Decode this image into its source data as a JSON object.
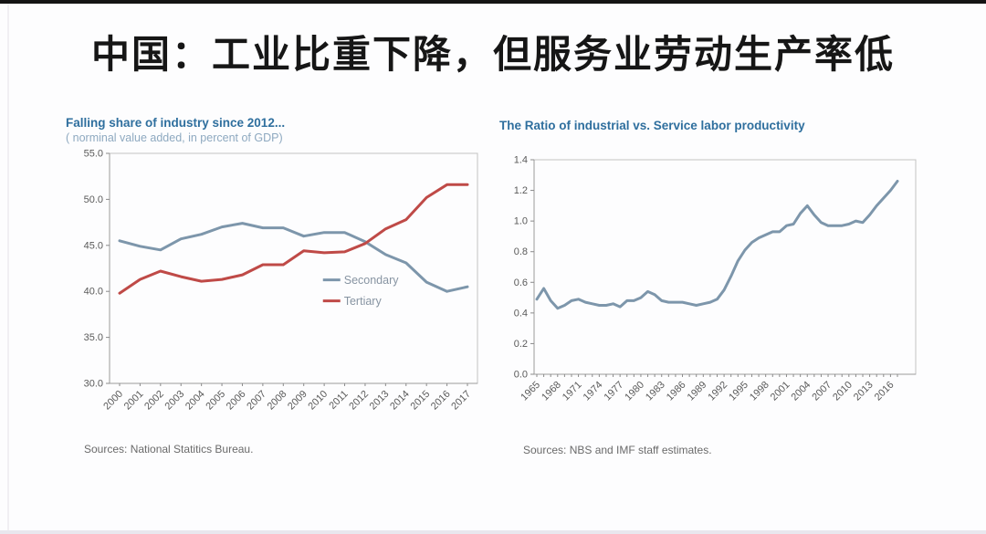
{
  "page": {
    "title": "中国：工业比重下降，但服务业劳动生产率低"
  },
  "colors": {
    "chart_title_accent": "#2f6f9e",
    "secondary_line": "#7d96ab",
    "tertiary_line": "#bf4a47",
    "productivity_line": "#7d96ab"
  },
  "chart_data": [
    {
      "id": "industry-share",
      "type": "line",
      "title": "Falling share of industry since 2012...",
      "subtitle": "( norminal value added, in percent of GDP)",
      "source": "Sources: National Statitics Bureau.",
      "xlabel": "",
      "ylabel": "",
      "ylim": [
        30,
        55
      ],
      "yticks": [
        55,
        50,
        45,
        40,
        35,
        30
      ],
      "ytick_labels": [
        "55.0",
        "50.0",
        "45.0",
        "40.0",
        "35.0",
        "30.0"
      ],
      "grid": false,
      "legend_position": "inside-right",
      "xtick_every": 1,
      "categories": [
        "2000",
        "2001",
        "2002",
        "2003",
        "2004",
        "2005",
        "2006",
        "2007",
        "2008",
        "2009",
        "2010",
        "2011",
        "2012",
        "2013",
        "2014",
        "2015",
        "2016",
        "2017"
      ],
      "series": [
        {
          "name": "Secondary",
          "color": "#7d96ab",
          "values": [
            45.5,
            44.9,
            44.5,
            45.7,
            46.2,
            47.0,
            47.4,
            46.9,
            46.9,
            46.0,
            46.4,
            46.4,
            45.4,
            44.0,
            43.1,
            41.0,
            40.0,
            40.5
          ]
        },
        {
          "name": "Tertiary",
          "color": "#bf4a47",
          "values": [
            39.8,
            41.3,
            42.2,
            41.6,
            41.1,
            41.3,
            41.8,
            42.9,
            42.9,
            44.4,
            44.2,
            44.3,
            45.2,
            46.8,
            47.8,
            50.2,
            51.6,
            51.6
          ]
        }
      ],
      "legend": {
        "show": true,
        "x": 0.58,
        "y": 0.55
      }
    },
    {
      "id": "productivity-ratio",
      "type": "line",
      "title": "The Ratio of industrial vs. Service labor productivity",
      "subtitle": "",
      "source": "Sources: NBS and IMF staff estimates.",
      "xlabel": "",
      "ylabel": "",
      "ylim": [
        0,
        1.4
      ],
      "yticks": [
        1.4,
        1.2,
        1.0,
        0.8,
        0.6,
        0.4,
        0.2,
        0.0
      ],
      "ytick_labels": [
        "1.4",
        "1.2",
        "1.0",
        "0.8",
        "0.6",
        "0.4",
        "0.2",
        "0.0"
      ],
      "grid": false,
      "legend_position": "none",
      "xtick_every": 3,
      "categories": [
        "1965",
        "1966",
        "1967",
        "1968",
        "1969",
        "1970",
        "1971",
        "1972",
        "1973",
        "1974",
        "1975",
        "1976",
        "1977",
        "1978",
        "1979",
        "1980",
        "1981",
        "1982",
        "1983",
        "1984",
        "1985",
        "1986",
        "1987",
        "1988",
        "1989",
        "1990",
        "1991",
        "1992",
        "1993",
        "1994",
        "1995",
        "1996",
        "1997",
        "1998",
        "1999",
        "2000",
        "2001",
        "2002",
        "2003",
        "2004",
        "2005",
        "2006",
        "2007",
        "2008",
        "2009",
        "2010",
        "2011",
        "2012",
        "2013",
        "2014",
        "2015",
        "2016",
        "2017"
      ],
      "series": [
        {
          "name": "Industrial vs. Service labor productivity ratio",
          "color": "#7d96ab",
          "values": [
            0.49,
            0.56,
            0.48,
            0.43,
            0.45,
            0.48,
            0.49,
            0.47,
            0.46,
            0.45,
            0.45,
            0.46,
            0.44,
            0.48,
            0.48,
            0.5,
            0.54,
            0.52,
            0.48,
            0.47,
            0.47,
            0.47,
            0.46,
            0.45,
            0.46,
            0.47,
            0.49,
            0.55,
            0.64,
            0.74,
            0.81,
            0.86,
            0.89,
            0.91,
            0.93,
            0.93,
            0.97,
            0.98,
            1.05,
            1.1,
            1.04,
            0.99,
            0.97,
            0.97,
            0.97,
            0.98,
            1.0,
            0.99,
            1.04,
            1.1,
            1.15,
            1.2,
            1.26
          ]
        }
      ],
      "legend": {
        "show": false,
        "x": 0,
        "y": 0
      }
    }
  ]
}
